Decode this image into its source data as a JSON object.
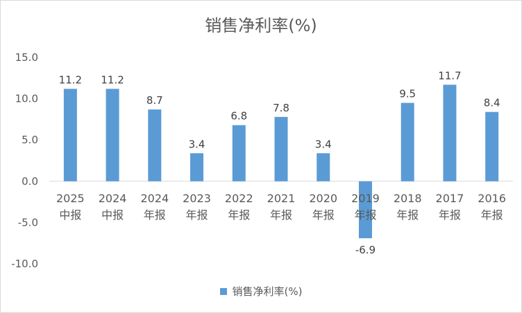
{
  "chart_data": {
    "type": "bar",
    "title": "销售净利率(%)",
    "categories": [
      [
        "2025",
        "中报"
      ],
      [
        "2024",
        "中报"
      ],
      [
        "2024",
        "年报"
      ],
      [
        "2023",
        "年报"
      ],
      [
        "2022",
        "年报"
      ],
      [
        "2021",
        "年报"
      ],
      [
        "2020",
        "年报"
      ],
      [
        "2019",
        "年报"
      ],
      [
        "2018",
        "年报"
      ],
      [
        "2017",
        "年报"
      ],
      [
        "2016",
        "年报"
      ]
    ],
    "series": [
      {
        "name": "销售净利率(%)",
        "color": "#5b9bd5",
        "values": [
          11.2,
          11.2,
          8.7,
          3.4,
          6.8,
          7.8,
          3.4,
          -6.9,
          9.5,
          11.7,
          8.4
        ],
        "labels": [
          "11.2",
          "11.2",
          "8.7",
          "3.4",
          "6.8",
          "7.8",
          "3.4",
          "-6.9",
          "9.5",
          "11.7",
          "8.4"
        ]
      }
    ],
    "ylim": [
      -10,
      15
    ],
    "yticks": [
      15,
      10,
      5,
      0,
      -5,
      -10
    ],
    "ytick_labels": [
      "15.0",
      "10.0",
      "5.0",
      "0.0",
      "-5.0",
      "-10.0"
    ],
    "xlabel": "",
    "ylabel": "",
    "grid": false,
    "legend": "bottom",
    "axis_color": "#d9d9d9"
  }
}
